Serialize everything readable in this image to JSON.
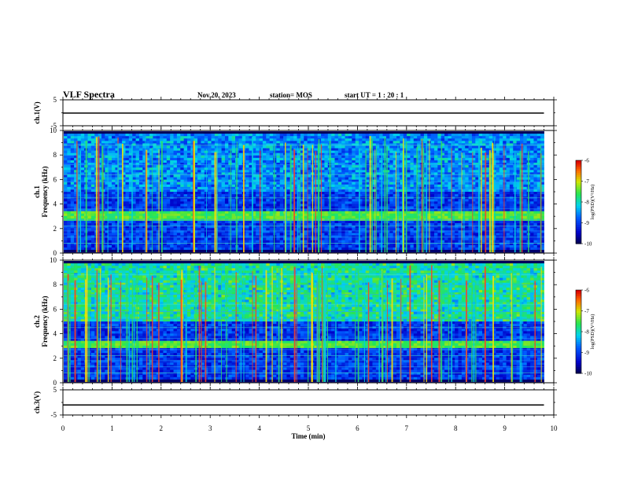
{
  "header": {
    "title": "VLF Spectra",
    "date": "Nov.20, 2023",
    "station": "station= MOS",
    "start": "start  UT =   1 : 20 : 1"
  },
  "chart_data": [
    {
      "type": "line",
      "id": "ch1-voltage",
      "ylabel": "ch.1(V)",
      "ylim": [
        -5,
        5
      ],
      "yticks": [
        "5",
        "-5"
      ],
      "x": [
        0,
        9.8
      ],
      "values": [
        -0.1,
        -0.1
      ]
    },
    {
      "type": "heatmap",
      "id": "ch1-spectrogram",
      "ylabel_top": "ch.1",
      "ylabel": "Frequency (kHz)",
      "ylim": [
        0,
        10
      ],
      "yticks": [
        "0",
        "2",
        "4",
        "6",
        "8",
        "10"
      ],
      "colorbar": {
        "label": "log(PSD)(V²/Hz)",
        "ticks": [
          "-6",
          "-7",
          "-8",
          "-9",
          "-10"
        ],
        "range": [
          -10,
          -6
        ]
      }
    },
    {
      "type": "heatmap",
      "id": "ch2-spectrogram",
      "ylabel_top": "ch.2",
      "ylabel": "Frequency (kHz)",
      "ylim": [
        0,
        10
      ],
      "yticks": [
        "0",
        "2",
        "4",
        "6",
        "8",
        "10"
      ],
      "colorbar": {
        "label": "log(PSD)(V²/Hz)",
        "ticks": [
          "-6",
          "-7",
          "-8",
          "-9",
          "-10"
        ],
        "range": [
          -10,
          -6
        ]
      }
    },
    {
      "type": "line",
      "id": "ch3-voltage",
      "ylabel": "ch.3(V)",
      "ylim": [
        -5,
        5
      ],
      "yticks": [
        "5",
        "-5"
      ],
      "x": [
        0,
        9.8
      ],
      "values": [
        -1.0,
        -1.0
      ]
    }
  ],
  "xaxis": {
    "label": "Time  (min)",
    "ticks": [
      "0",
      "1",
      "2",
      "3",
      "4",
      "5",
      "6",
      "7",
      "8",
      "9",
      "10"
    ],
    "range": [
      0,
      10
    ]
  }
}
